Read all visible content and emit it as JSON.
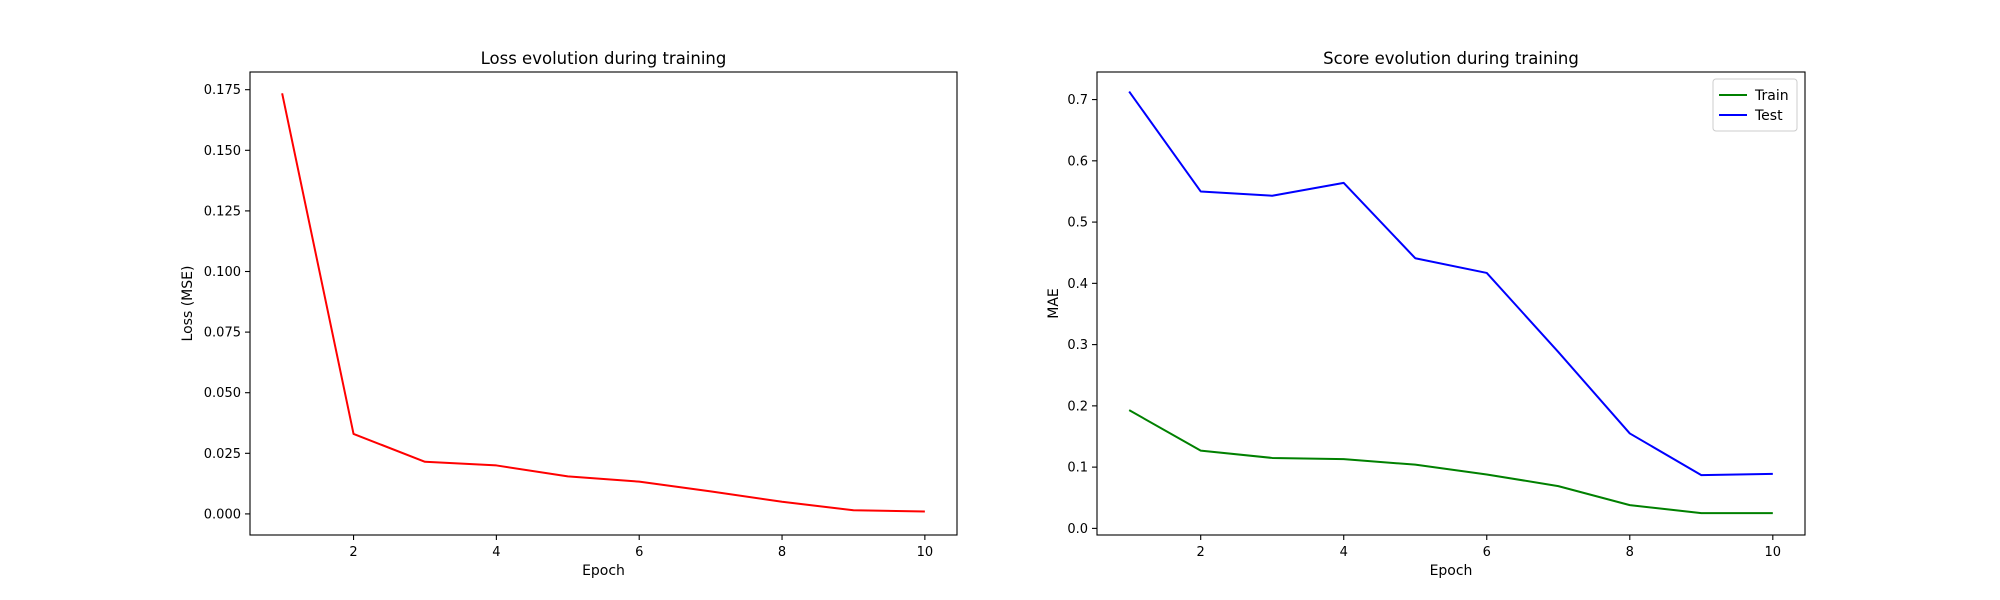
{
  "chart_data": [
    {
      "type": "line",
      "title": "Loss evolution during training",
      "xlabel": "Epoch",
      "ylabel": "Loss (MSE)",
      "xlim": [
        0.55,
        10.45
      ],
      "ylim": [
        -0.0087,
        0.1823
      ],
      "xticks": [
        2,
        4,
        6,
        8,
        10
      ],
      "yticks": [
        0.0,
        0.025,
        0.05,
        0.075,
        0.1,
        0.125,
        0.15,
        0.175
      ],
      "ytick_labels": [
        "0.000",
        "0.025",
        "0.050",
        "0.075",
        "0.100",
        "0.125",
        "0.150",
        "0.175"
      ],
      "x": [
        1,
        2,
        3,
        4,
        5,
        6,
        7,
        8,
        9,
        10
      ],
      "grid": false,
      "series": [
        {
          "color": "#ff0000",
          "values": [
            0.1735,
            0.033,
            0.0215,
            0.02,
            0.0155,
            0.0133,
            0.0093,
            0.005,
            0.0015,
            0.001
          ]
        }
      ]
    },
    {
      "type": "line",
      "title": "Score evolution during training",
      "xlabel": "Epoch",
      "ylabel": "MAE",
      "xlim": [
        0.55,
        10.45
      ],
      "ylim": [
        -0.0108,
        0.745
      ],
      "xticks": [
        2,
        4,
        6,
        8,
        10
      ],
      "yticks": [
        0.0,
        0.1,
        0.2,
        0.3,
        0.4,
        0.5,
        0.6,
        0.7
      ],
      "ytick_labels": [
        "0.0",
        "0.1",
        "0.2",
        "0.3",
        "0.4",
        "0.5",
        "0.6",
        "0.7"
      ],
      "x": [
        1,
        2,
        3,
        4,
        5,
        6,
        7,
        8,
        9,
        10
      ],
      "grid": false,
      "legend": "top-right",
      "series": [
        {
          "name": "Train",
          "color": "#008000",
          "values": [
            0.193,
            0.127,
            0.115,
            0.113,
            0.104,
            0.088,
            0.069,
            0.038,
            0.025,
            0.025
          ]
        },
        {
          "name": "Test",
          "color": "#0000ff",
          "values": [
            0.713,
            0.55,
            0.543,
            0.564,
            0.441,
            0.417,
            0.288,
            0.155,
            0.087,
            0.089
          ]
        }
      ]
    }
  ]
}
